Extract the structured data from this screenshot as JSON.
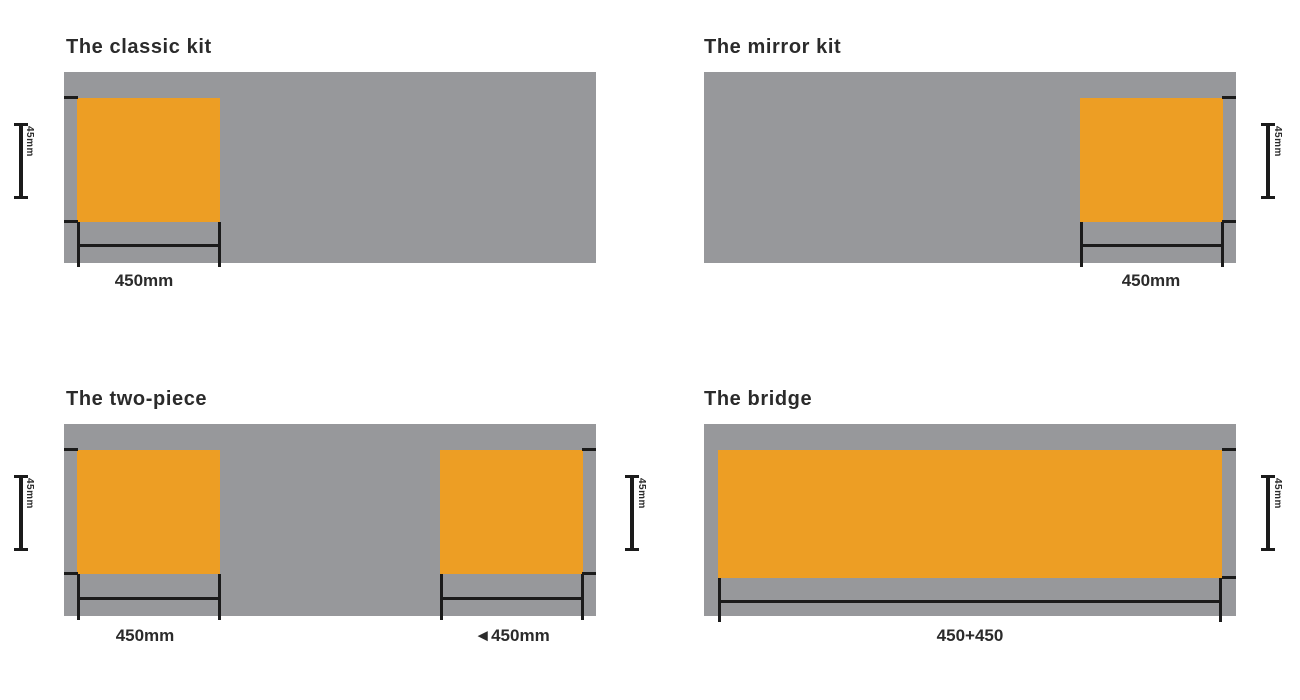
{
  "diagram": {
    "colors": {
      "bar_gray": "#97989B",
      "accent_orange": "#ED9E24",
      "line_black": "#1b1b1b",
      "text_dark": "#2b2b2b",
      "background": "#ffffff"
    },
    "panels": [
      {
        "position": "top-left",
        "title": "The classic kit",
        "block_placement": "left",
        "width_label": "450mm",
        "height_label": "45mm"
      },
      {
        "position": "top-right",
        "title": "The mirror kit",
        "block_placement": "right",
        "width_label": "450mm",
        "height_label": "45mm"
      },
      {
        "position": "bottom-left",
        "title": "The two-piece",
        "block_placement": "both-ends",
        "width_label_left": "450mm",
        "width_label_right": "◄450mm",
        "height_label_left": "45mm",
        "height_label_right": "45mm"
      },
      {
        "position": "bottom-right",
        "title": "The bridge",
        "block_placement": "full-width",
        "width_label": "450+450",
        "height_label": "45mm"
      }
    ]
  }
}
